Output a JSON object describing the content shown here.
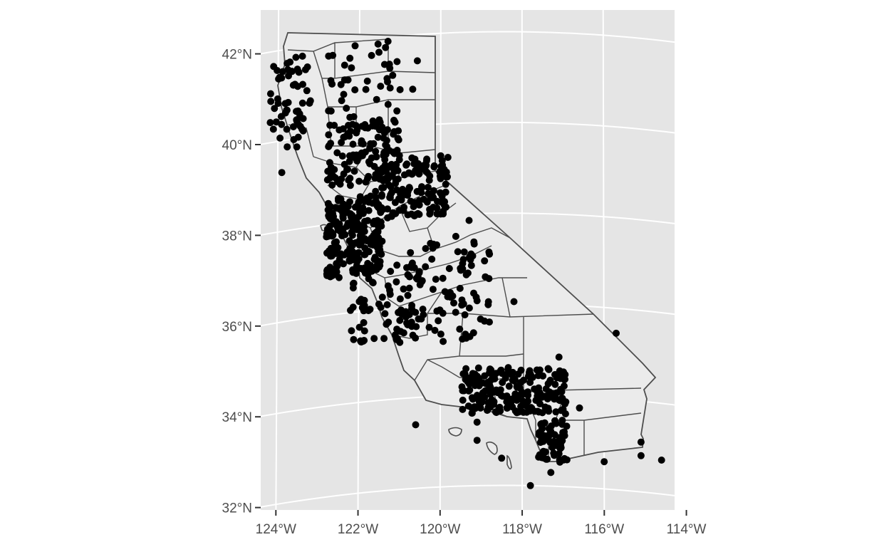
{
  "chart_data": {
    "type": "scatter",
    "subject": "California county map with point locations",
    "title": "",
    "xlabel": "",
    "ylabel": "",
    "xlim": [
      -124.5,
      -113.9
    ],
    "ylim": [
      31.5,
      42.5
    ],
    "grid": true,
    "projection": "conic (curved graticule)",
    "x_tick_labels": [
      "124°W",
      "122°W",
      "120°W",
      "118°W",
      "116°W",
      "114°W"
    ],
    "y_tick_labels": [
      "42°N",
      "40°N",
      "38°N",
      "36°N",
      "34°N",
      "32°N"
    ],
    "colors": {
      "panel": "#e5e5e5",
      "grid": "#ffffff",
      "state_fill": "#ebebeb",
      "county_border": "#4d4d4d",
      "points": "#000000"
    },
    "points": {
      "count_approx": 1000,
      "clusters": [
        {
          "region": "North coast",
          "lon": [
            -124.2,
            -123.2
          ],
          "lat": [
            39.8,
            41.8
          ],
          "n": 60
        },
        {
          "region": "Far north interior",
          "lon": [
            -123.0,
            -120.5
          ],
          "lat": [
            40.3,
            41.9
          ],
          "n": 40
        },
        {
          "region": "Sacramento valley",
          "lon": [
            -122.8,
            -121.0
          ],
          "lat": [
            38.8,
            40.2
          ],
          "n": 120
        },
        {
          "region": "Sierra foothills",
          "lon": [
            -121.6,
            -119.8
          ],
          "lat": [
            38.0,
            39.3
          ],
          "n": 140
        },
        {
          "region": "SF Bay Area",
          "lon": [
            -122.8,
            -121.4
          ],
          "lat": [
            36.8,
            38.6
          ],
          "n": 220
        },
        {
          "region": "Central coast",
          "lon": [
            -122.2,
            -120.4
          ],
          "lat": [
            35.3,
            37.0
          ],
          "n": 80
        },
        {
          "region": "San Joaquin valley",
          "lon": [
            -121.0,
            -118.8
          ],
          "lat": [
            35.2,
            37.6
          ],
          "n": 80
        },
        {
          "region": "Los Angeles basin",
          "lon": [
            -119.5,
            -116.9
          ],
          "lat": [
            33.6,
            34.6
          ],
          "n": 220
        },
        {
          "region": "San Diego",
          "lon": [
            -117.6,
            -116.9
          ],
          "lat": [
            32.5,
            33.5
          ],
          "n": 60
        }
      ],
      "outliers": [
        {
          "lon": -123.9,
          "lat": 39.3
        },
        {
          "lon": -121.3,
          "lat": 41.9
        },
        {
          "lon": -122.2,
          "lat": 36.05
        },
        {
          "lon": -118.2,
          "lat": 36.05
        },
        {
          "lon": -115.7,
          "lat": 35.45
        },
        {
          "lon": -115.1,
          "lat": 33.1
        },
        {
          "lon": -115.1,
          "lat": 32.8
        },
        {
          "lon": -114.6,
          "lat": 32.75
        },
        {
          "lon": -116.0,
          "lat": 32.6
        },
        {
          "lon": -117.3,
          "lat": 32.3
        },
        {
          "lon": -117.8,
          "lat": 32.0
        },
        {
          "lon": -120.6,
          "lat": 33.4
        },
        {
          "lon": -119.1,
          "lat": 33.4
        },
        {
          "lon": -119.1,
          "lat": 33.0
        },
        {
          "lon": -118.5,
          "lat": 32.6
        },
        {
          "lon": -118.9,
          "lat": 36.6
        },
        {
          "lon": -119.3,
          "lat": 37.85
        },
        {
          "lon": -118.8,
          "lat": 37.1
        },
        {
          "lon": -117.1,
          "lat": 34.85
        },
        {
          "lon": -116.6,
          "lat": 33.75
        }
      ]
    }
  }
}
